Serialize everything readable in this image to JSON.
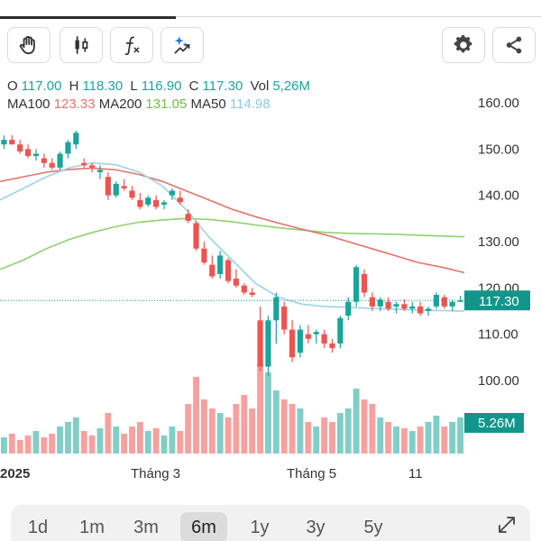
{
  "ohlc": {
    "o_label": "O",
    "o": "117.00",
    "h_label": "H",
    "h": "118.30",
    "l_label": "L",
    "l": "116.90",
    "c_label": "C",
    "c": "117.30",
    "vol_label": "Vol",
    "vol": "5,26M"
  },
  "ma": {
    "ma100_label": "MA100",
    "ma100": "123.33",
    "ma200_label": "MA200",
    "ma200": "131.05",
    "ma50_label": "MA50",
    "ma50": "114.98"
  },
  "colors": {
    "up": "#1aa59a",
    "down": "#ef5350",
    "ma100": "#e57368",
    "ma200": "#8fd16b",
    "ma50": "#9dd2ea",
    "price_tag": "#12968b"
  },
  "toolbar": {
    "icons": [
      "hand-pan-icon",
      "candlestick-icon",
      "function-icon",
      "sparkle-indicator-icon",
      "gear-icon",
      "share-icon"
    ]
  },
  "chart_data": {
    "type": "candlestick",
    "y_ticks": [
      "160.00",
      "150.00",
      "140.00",
      "130.00",
      "120.00",
      "110.00",
      "100.00"
    ],
    "ylim": [
      100,
      160
    ],
    "x_labels": [
      "2025",
      "Tháng 3",
      "Tháng 5",
      "11"
    ],
    "last_price": "117.30",
    "last_price_value": 117.3,
    "last_volume": "5.26M",
    "ma100": [
      143,
      144,
      145,
      145.6,
      145.9,
      145.5,
      144.5,
      143,
      141,
      139,
      137,
      135.4,
      134,
      132.7,
      131.5,
      130,
      128.5,
      127,
      125.5,
      124.5,
      123.3
    ],
    "ma200": [
      124,
      126,
      128.5,
      130.5,
      132,
      133.3,
      134.2,
      134.7,
      135,
      134.8,
      134.3,
      133.6,
      133,
      132.5,
      132,
      131.8,
      131.7,
      131.6,
      131.4,
      131.2,
      131.05
    ],
    "ma50": [
      139,
      141.5,
      144,
      146,
      147,
      146.6,
      145,
      142,
      137,
      131,
      126,
      121,
      118,
      116.5,
      116,
      115.8,
      115.6,
      115.4,
      115.2,
      115.1,
      114.98
    ],
    "candles": [
      [
        151,
        153,
        150,
        152
      ],
      [
        152,
        153,
        151,
        151
      ],
      [
        151,
        152,
        149,
        149.5
      ],
      [
        150,
        151,
        148,
        148.5
      ],
      [
        148.5,
        150,
        147.5,
        149
      ],
      [
        148,
        149,
        146,
        147
      ],
      [
        147,
        148,
        145.5,
        146
      ],
      [
        146,
        149.5,
        145.5,
        149
      ],
      [
        149,
        152,
        148,
        151.5
      ],
      [
        151,
        154,
        150,
        153.5
      ],
      [
        147,
        148,
        146,
        146.5
      ],
      [
        146.5,
        147,
        145,
        146
      ],
      [
        145,
        146.5,
        143.5,
        145.5
      ],
      [
        144,
        145,
        139,
        140
      ],
      [
        140,
        143,
        139.5,
        142.5
      ],
      [
        142,
        143.5,
        141,
        141.5
      ],
      [
        141,
        142,
        139,
        139.5
      ],
      [
        139,
        140.5,
        137,
        137.5
      ],
      [
        138,
        140,
        137.5,
        139.5
      ],
      [
        139,
        140,
        137,
        137.5
      ],
      [
        138,
        139,
        137,
        138.5
      ],
      [
        140,
        141.5,
        139,
        141
      ],
      [
        139.5,
        141,
        138,
        138.5
      ],
      [
        136,
        137,
        134,
        134.5
      ],
      [
        134,
        134.5,
        128,
        128.5
      ],
      [
        128.5,
        130,
        125,
        125.5
      ],
      [
        125,
        127,
        122,
        122.5
      ],
      [
        123,
        128,
        122,
        127
      ],
      [
        126,
        126.5,
        121,
        121.5
      ],
      [
        122,
        124,
        120,
        120.5
      ],
      [
        120.5,
        121,
        118.5,
        119
      ],
      [
        119,
        120,
        118,
        118.5
      ],
      [
        113,
        116,
        102,
        103
      ],
      [
        103,
        114,
        101,
        113
      ],
      [
        113,
        119,
        108,
        118
      ],
      [
        116,
        117,
        110,
        111
      ],
      [
        111,
        113,
        104,
        105
      ],
      [
        106,
        112,
        105,
        111
      ],
      [
        110,
        112,
        108,
        109
      ],
      [
        110,
        111,
        108,
        110.5
      ],
      [
        110,
        111,
        107,
        108
      ],
      [
        108,
        109,
        106,
        107
      ],
      [
        108,
        114,
        107,
        113.5
      ],
      [
        114,
        118,
        113,
        117
      ],
      [
        117,
        125,
        116,
        124.5
      ],
      [
        123,
        124,
        118,
        119
      ],
      [
        118,
        119,
        115,
        116
      ],
      [
        116,
        118,
        115,
        117.5
      ],
      [
        117,
        118,
        115,
        115.5
      ],
      [
        116,
        117,
        114.5,
        116.5
      ],
      [
        116.5,
        117.5,
        115,
        115.5
      ],
      [
        115.5,
        117,
        114.5,
        116
      ],
      [
        116,
        117,
        114,
        114.5
      ],
      [
        115,
        116,
        114,
        115.5
      ],
      [
        116,
        119,
        115.5,
        118.5
      ],
      [
        118,
        118.5,
        115.5,
        116
      ],
      [
        116,
        117.5,
        115,
        117
      ],
      [
        117,
        118.3,
        116.9,
        117.3
      ]
    ],
    "volume_ratio": [
      0.18,
      0.22,
      0.15,
      0.2,
      0.25,
      0.18,
      0.22,
      0.3,
      0.35,
      0.4,
      0.25,
      0.2,
      0.28,
      0.45,
      0.3,
      0.22,
      0.3,
      0.35,
      0.25,
      0.28,
      0.2,
      0.3,
      0.25,
      0.55,
      0.85,
      0.6,
      0.5,
      0.45,
      0.4,
      0.55,
      0.65,
      0.5,
      1.0,
      0.9,
      0.7,
      0.6,
      0.55,
      0.5,
      0.35,
      0.3,
      0.4,
      0.35,
      0.45,
      0.5,
      0.72,
      0.6,
      0.55,
      0.4,
      0.35,
      0.3,
      0.28,
      0.25,
      0.3,
      0.35,
      0.42,
      0.3,
      0.35,
      0.4
    ]
  },
  "periods": [
    {
      "label": "1d",
      "active": false
    },
    {
      "label": "1m",
      "active": false
    },
    {
      "label": "3m",
      "active": false
    },
    {
      "label": "6m",
      "active": true
    },
    {
      "label": "1y",
      "active": false
    },
    {
      "label": "3y",
      "active": false
    },
    {
      "label": "5y",
      "active": false
    }
  ]
}
